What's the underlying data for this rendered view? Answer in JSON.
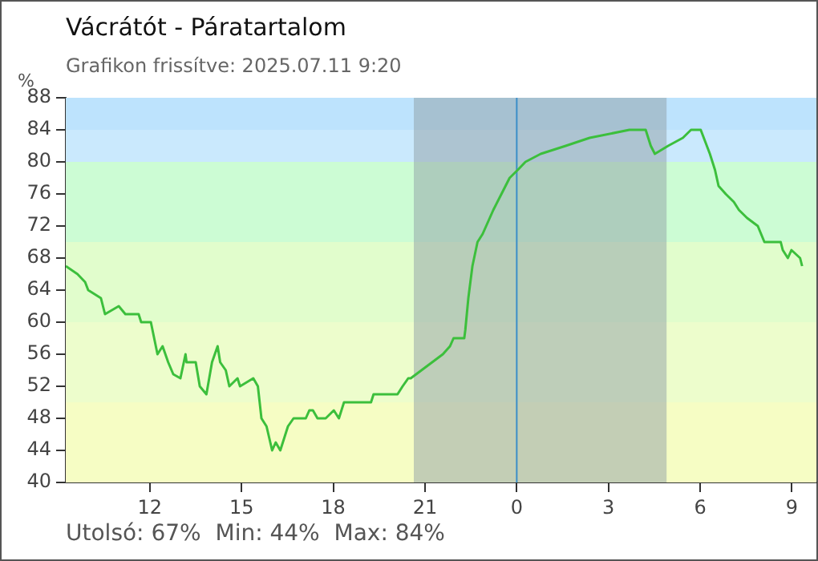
{
  "chart_data": {
    "type": "line",
    "title": "Vácrátót - Páratartalom",
    "subtitle": "Grafikon frissítve: 2025.07.11 9:20",
    "ylabel": "%",
    "annotations": [
      "Utolsó: 67%  Min: 44%  Max: 84%"
    ],
    "x": [
      "2025-07-10T09:15",
      "2025-07-10T09:38",
      "2025-07-10T09:53",
      "2025-07-10T09:59",
      "2025-07-10T10:24",
      "2025-07-10T10:32",
      "2025-07-10T10:59",
      "2025-07-10T11:12",
      "2025-07-10T11:38",
      "2025-07-10T11:43",
      "2025-07-10T12:02",
      "2025-07-10T12:15",
      "2025-07-10T12:25",
      "2025-07-10T12:36",
      "2025-07-10T12:46",
      "2025-07-10T13:00",
      "2025-07-10T13:10",
      "2025-07-10T13:12",
      "2025-07-10T13:30",
      "2025-07-10T13:38",
      "2025-07-10T13:51",
      "2025-07-10T14:02",
      "2025-07-10T14:13",
      "2025-07-10T14:18",
      "2025-07-10T14:29",
      "2025-07-10T14:36",
      "2025-07-10T14:52",
      "2025-07-10T14:57",
      "2025-07-10T15:23",
      "2025-07-10T15:32",
      "2025-07-10T15:39",
      "2025-07-10T15:49",
      "2025-07-10T16:00",
      "2025-07-10T16:07",
      "2025-07-10T16:16",
      "2025-07-10T16:31",
      "2025-07-10T16:42",
      "2025-07-10T17:06",
      "2025-07-10T17:13",
      "2025-07-10T17:20",
      "2025-07-10T17:29",
      "2025-07-10T17:45",
      "2025-07-10T18:01",
      "2025-07-10T18:11",
      "2025-07-10T18:21",
      "2025-07-10T18:32",
      "2025-07-10T19:14",
      "2025-07-10T19:19",
      "2025-07-10T20:06",
      "2025-07-10T20:16",
      "2025-07-10T20:27",
      "2025-07-10T20:32",
      "2025-07-10T20:53",
      "2025-07-10T21:14",
      "2025-07-10T21:35",
      "2025-07-10T21:49",
      "2025-07-10T21:56",
      "2025-07-10T22:17",
      "2025-07-10T22:19",
      "2025-07-10T22:25",
      "2025-07-10T22:33",
      "2025-07-10T22:43",
      "2025-07-10T22:53",
      "2025-07-10T23:14",
      "2025-07-10T23:30",
      "2025-07-10T23:46",
      "2025-07-11T00:02",
      "2025-07-11T00:17",
      "2025-07-11T00:47",
      "2025-07-11T01:36",
      "2025-07-11T02:23",
      "2025-07-11T03:41",
      "2025-07-11T04:13",
      "2025-07-11T04:23",
      "2025-07-11T04:31",
      "2025-07-11T04:57",
      "2025-07-11T05:26",
      "2025-07-11T05:42",
      "2025-07-11T06:01",
      "2025-07-11T06:19",
      "2025-07-11T06:29",
      "2025-07-11T06:36",
      "2025-07-11T06:50",
      "2025-07-11T07:06",
      "2025-07-11T07:16",
      "2025-07-11T07:32",
      "2025-07-11T07:53",
      "2025-07-11T08:06",
      "2025-07-11T08:38",
      "2025-07-11T08:42",
      "2025-07-11T08:52",
      "2025-07-11T08:59",
      "2025-07-11T09:16",
      "2025-07-11T09:20"
    ],
    "series": [
      {
        "color": "#3cbf3c",
        "values": [
          67,
          66,
          65,
          64,
          63,
          61,
          62,
          61,
          61,
          60,
          60,
          56,
          57,
          55,
          53.5,
          53,
          56,
          55,
          55,
          52,
          51,
          55,
          57,
          55,
          54,
          52,
          53,
          52,
          53,
          52,
          48,
          47,
          44,
          45,
          44,
          47,
          48,
          48,
          49,
          49,
          48,
          48,
          49,
          48,
          50,
          50,
          50,
          51,
          51,
          52,
          53,
          53,
          54,
          55,
          56,
          57,
          58,
          58,
          59,
          63,
          67,
          70,
          71,
          74,
          76,
          78,
          79,
          80,
          81,
          82,
          83,
          84,
          84,
          82,
          81,
          82,
          83,
          84,
          84,
          81,
          79,
          77,
          76,
          75,
          74,
          73,
          72,
          70,
          70,
          69,
          68,
          69,
          68,
          67
        ]
      }
    ],
    "xlim": [
      "2025-07-10T09:15",
      "2025-07-11T09:48"
    ],
    "xticks": [
      {
        "value": "2025-07-10T12:00",
        "label": "12"
      },
      {
        "value": "2025-07-10T15:00",
        "label": "15"
      },
      {
        "value": "2025-07-10T18:00",
        "label": "18"
      },
      {
        "value": "2025-07-10T21:00",
        "label": "21"
      },
      {
        "value": "2025-07-11T00:00",
        "label": "0"
      },
      {
        "value": "2025-07-11T03:00",
        "label": "3"
      },
      {
        "value": "2025-07-11T06:00",
        "label": "6"
      },
      {
        "value": "2025-07-11T09:00",
        "label": "9"
      }
    ],
    "ylim": [
      40,
      88
    ],
    "yticks": [
      40,
      44,
      48,
      52,
      56,
      60,
      64,
      68,
      72,
      76,
      80,
      84,
      88
    ],
    "bands": [
      {
        "axis": "y",
        "from": 84,
        "to": 88,
        "color": "#bde3fd"
      },
      {
        "axis": "y",
        "from": 80,
        "to": 84,
        "color": "#cae9fd"
      },
      {
        "axis": "y",
        "from": 70,
        "to": 80,
        "color": "#ccfcd4"
      },
      {
        "axis": "y",
        "from": 60,
        "to": 70,
        "color": "#e1fdcc"
      },
      {
        "axis": "y",
        "from": 50,
        "to": 60,
        "color": "#edfdcc"
      },
      {
        "axis": "y",
        "from": 40,
        "to": 50,
        "color": "#f6fdc4"
      },
      {
        "axis": "x",
        "from": "2025-07-10T20:38",
        "to": "2025-07-11T04:54",
        "color": "#8f9fa6"
      }
    ],
    "ref_lines": [
      {
        "axis": "x",
        "value": "2025-07-11T00:00",
        "color": "#3a8ec8"
      }
    ],
    "grid": false,
    "legend": false,
    "marker": "none",
    "line_style": "solid"
  }
}
